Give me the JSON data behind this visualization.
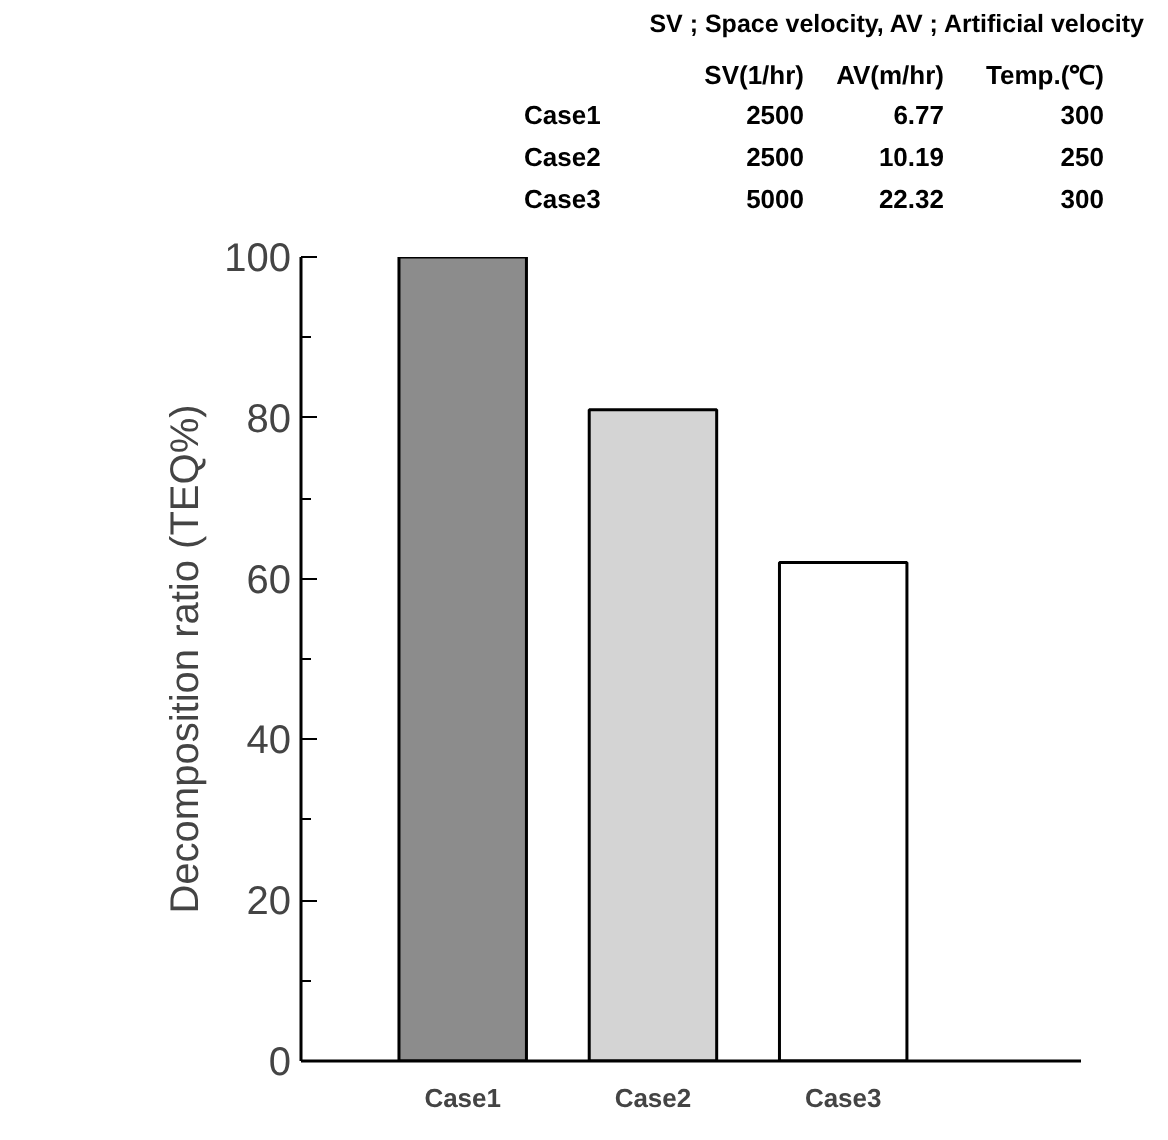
{
  "chart_data": {
    "type": "bar",
    "ylabel": "Decomposition ratio (TEQ%)",
    "categories": [
      "Case1",
      "Case2",
      "Case3"
    ],
    "values": [
      100,
      81,
      62
    ],
    "colors": [
      "#8c8c8c",
      "#d4d4d4",
      "#ffffff"
    ],
    "ylim": [
      0,
      100
    ],
    "yticks": [
      0,
      20,
      40,
      60,
      80,
      100
    ],
    "grid": false,
    "annotations": [
      "SV ; Space velocity,  AV ; Artificial velocity",
      "SV(1/hr) AV(m/hr) Temp.(℃)",
      "Case1 2500 6.77 300",
      "Case2 2500 10.19 250",
      "Case3 5000 22.32 300"
    ]
  }
}
